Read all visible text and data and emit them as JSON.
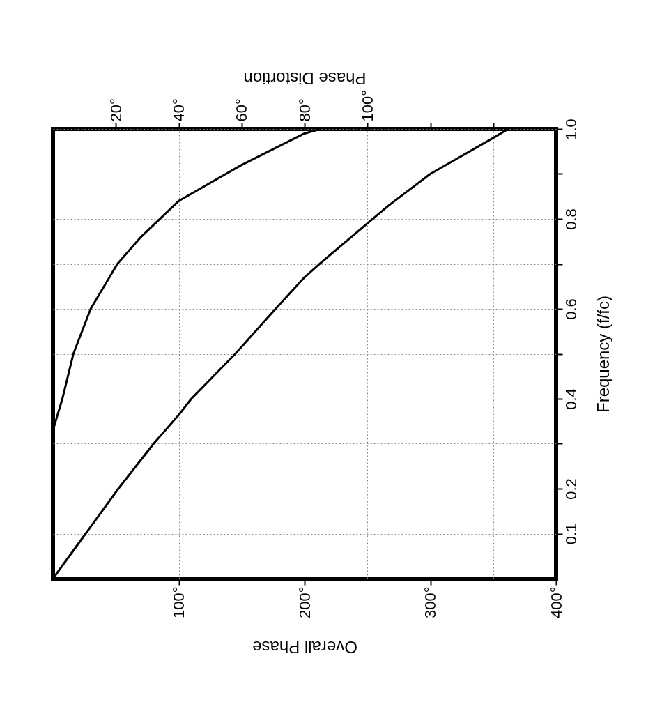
{
  "chart_data": {
    "type": "line",
    "xlabel": "Overall Phase",
    "x2label": "Phase Distortion",
    "ylabel": "Frequency (f/fc)",
    "xlim": [
      0,
      400
    ],
    "xticks": [
      {
        "value": 100,
        "label": "100°"
      },
      {
        "value": 200,
        "label": "200°"
      },
      {
        "value": 300,
        "label": "300°"
      },
      {
        "value": 400,
        "label": "400°"
      }
    ],
    "x2lim": [
      0,
      160
    ],
    "x2ticks": [
      {
        "value": 20,
        "label": "20°"
      },
      {
        "value": 40,
        "label": "40°"
      },
      {
        "value": 60,
        "label": "60°"
      },
      {
        "value": 80,
        "label": "80°"
      },
      {
        "value": 100,
        "label": "100°"
      },
      {
        "value": 120,
        "label": null
      },
      {
        "value": 140,
        "label": null
      }
    ],
    "ylim": [
      0,
      1
    ],
    "yticks": [
      0.1,
      0.2,
      {
        "value": 0.3,
        "label": null
      },
      0.4,
      {
        "value": 0.5,
        "label": null
      },
      0.6,
      {
        "value": 0.7,
        "label": null
      },
      0.8,
      {
        "value": 0.9,
        "label": null
      },
      {
        "value": 1,
        "label": "1.0"
      }
    ],
    "grid": true,
    "marker": "none",
    "line_style": "solid",
    "series": [
      {
        "color": "#000000",
        "x": [
          0,
          26,
          52,
          80,
          100,
          110,
          145,
          177,
          200,
          212,
          250,
          267,
          300,
          350,
          362
        ],
        "values": [
          0,
          0.1,
          0.2,
          0.3,
          0.364,
          0.4,
          0.5,
          0.6,
          0.67,
          0.7,
          0.79,
          0.83,
          0.9,
          0.98,
          1.0
        ]
      },
      {
        "color": "#000000",
        "axis": "x2",
        "x": [
          0,
          3,
          6.5,
          12,
          20.5,
          28,
          40,
          60,
          80,
          85
        ],
        "values": [
          0.33,
          0.4,
          0.5,
          0.6,
          0.7,
          0.76,
          0.84,
          0.92,
          0.99,
          1.0
        ]
      }
    ]
  }
}
